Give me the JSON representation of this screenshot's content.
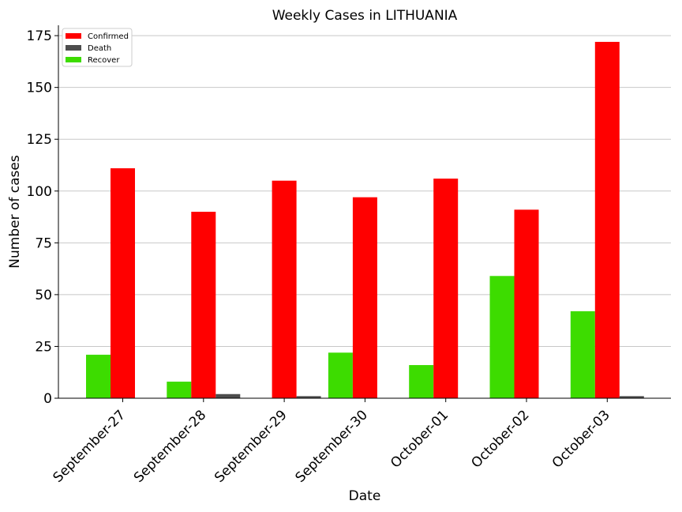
{
  "chart_data": {
    "type": "bar",
    "title": "Weekly Cases in LITHUANIA",
    "xlabel": "Date",
    "ylabel": "Number of cases",
    "categories": [
      "September-27",
      "September-28",
      "September-29",
      "September-30",
      "October-01",
      "October-02",
      "October-03"
    ],
    "series": [
      {
        "name": "Recover",
        "color": "#3ddc00",
        "values": [
          21,
          8,
          0,
          22,
          16,
          59,
          42
        ]
      },
      {
        "name": "Confirmed",
        "color": "#ff0000",
        "values": [
          111,
          90,
          105,
          97,
          106,
          91,
          172
        ]
      },
      {
        "name": "Death",
        "color": "#4d4d4d",
        "values": [
          0,
          2,
          1,
          0,
          0,
          0,
          1
        ]
      }
    ],
    "legend_order": [
      "Confirmed",
      "Death",
      "Recover"
    ],
    "ylim": [
      0,
      180
    ],
    "yticks": [
      0,
      25,
      50,
      75,
      100,
      125,
      150,
      175
    ],
    "grid": "horizontal",
    "legend_position": "top-left"
  }
}
